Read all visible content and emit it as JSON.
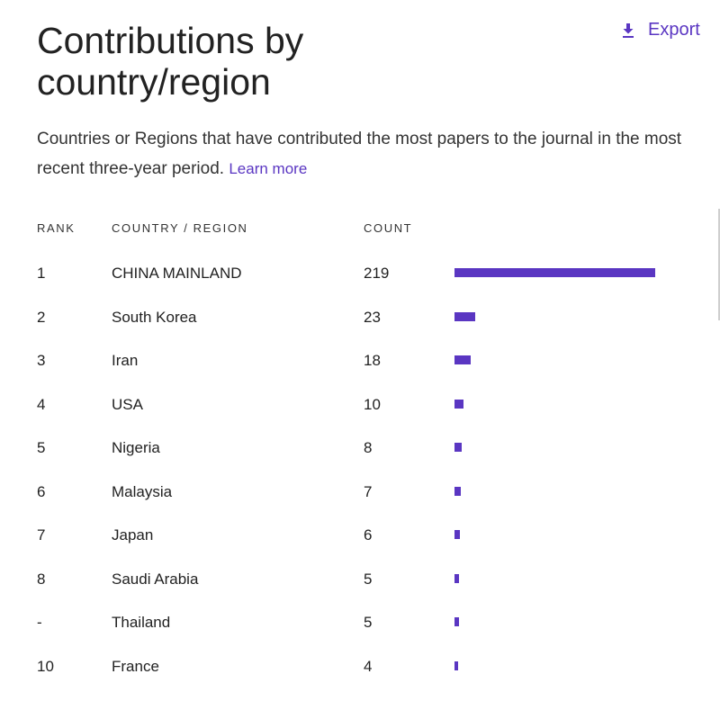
{
  "header": {
    "title": "Contributions by country/region",
    "export_label": "Export",
    "description": "Countries or Regions that have contributed the most papers to the journal in the most recent three-year period.",
    "learn_more": "Learn more"
  },
  "table": {
    "columns": {
      "rank": "RANK",
      "country": "COUNTRY / REGION",
      "count": "COUNT"
    },
    "max_count": 219,
    "rows": [
      {
        "rank": "1",
        "country": "CHINA MAINLAND",
        "count": "219"
      },
      {
        "rank": "2",
        "country": "South Korea",
        "count": "23"
      },
      {
        "rank": "3",
        "country": "Iran",
        "count": "18"
      },
      {
        "rank": "4",
        "country": "USA",
        "count": "10"
      },
      {
        "rank": "5",
        "country": "Nigeria",
        "count": "8"
      },
      {
        "rank": "6",
        "country": "Malaysia",
        "count": "7"
      },
      {
        "rank": "7",
        "country": "Japan",
        "count": "6"
      },
      {
        "rank": "8",
        "country": "Saudi Arabia",
        "count": "5"
      },
      {
        "rank": "-",
        "country": "Thailand",
        "count": "5"
      },
      {
        "rank": "10",
        "country": "France",
        "count": "4"
      }
    ]
  },
  "colors": {
    "accent": "#5a36c2",
    "text": "#222222"
  }
}
